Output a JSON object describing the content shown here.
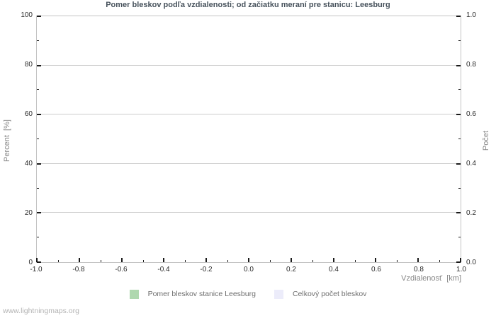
{
  "title": "Pomer bleskov podľa vzdialenosti; od začiatku meraní pre stanicu: Leesburg",
  "watermark": "www.lightningmaps.org",
  "colors": {
    "title": "#47525c",
    "gridline": "#cdcdcd",
    "plot_border": "#c3c3c3",
    "tick": "#1a1a1a",
    "tick_label": "#2a2a2a",
    "axis_title": "#878787",
    "legend_text": "#6f6f6f",
    "watermark": "#b3b3b3",
    "series_ratio_green": "#afd8af",
    "series_total_lavender": "#ececfa"
  },
  "chart_data": {
    "type": "bar",
    "title": "Pomer bleskov podľa vzdialenosti; od začiatku meraní pre stanicu: Leesburg",
    "xlabel": "Vzdialenosť  [km]",
    "ylabel_left": "Percent  [%]",
    "ylabel_right": "Počet",
    "xlim": [
      -1.0,
      1.0
    ],
    "ylim_left": [
      0,
      100
    ],
    "ylim_right": [
      0.0,
      1.0
    ],
    "x_ticks": [
      "-1.0",
      "-0.8",
      "-0.6",
      "-0.4",
      "-0.2",
      "0.0",
      "0.2",
      "0.4",
      "0.6",
      "0.8",
      "1.0"
    ],
    "y_ticks_left": [
      "0",
      "20",
      "40",
      "60",
      "80",
      "100"
    ],
    "y_ticks_right": [
      "0.0",
      "0.2",
      "0.4",
      "0.6",
      "0.8",
      "1.0"
    ],
    "grid": "horizontal-only",
    "legend_position": "bottom",
    "series": [
      {
        "name": "Pomer bleskov stanice Leesburg",
        "color": "#afd8af",
        "values": []
      },
      {
        "name": "Celkový počet bleskov",
        "color": "#ececfa",
        "values": []
      }
    ]
  }
}
